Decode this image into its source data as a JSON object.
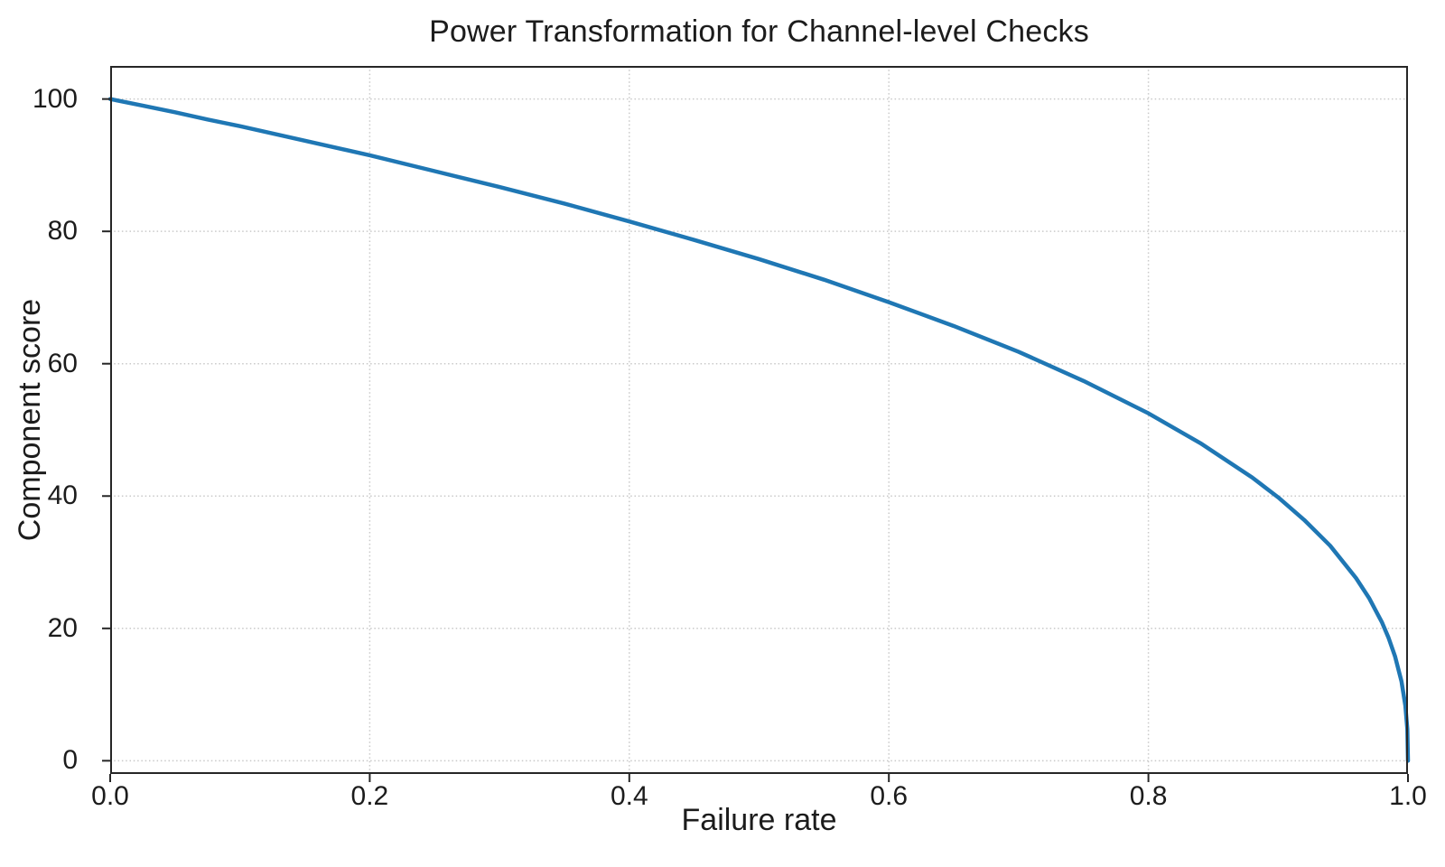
{
  "figure": {
    "background": "#ffffff",
    "text_color": "#1c1c1c"
  },
  "chart_data": {
    "type": "line",
    "title": "Power Transformation for Channel-level Checks",
    "xlabel": "Failure rate",
    "ylabel": "Component score",
    "xlim": [
      0,
      1
    ],
    "ylim": [
      -2,
      105
    ],
    "grid": {
      "style": "dotted",
      "color": "#c9c9c9"
    },
    "spine_color": "#262626",
    "legend": "none",
    "x_ticks": {
      "values": [
        0.0,
        0.2,
        0.4,
        0.6,
        0.8,
        1.0
      ],
      "labels": [
        "0.0",
        "0.2",
        "0.4",
        "0.6",
        "0.8",
        "1.0"
      ]
    },
    "y_ticks": {
      "values": [
        0,
        20,
        40,
        60,
        80,
        100
      ],
      "labels": [
        "0",
        "20",
        "40",
        "60",
        "80",
        "100"
      ]
    },
    "series": [
      {
        "name": "Component score",
        "formula": "y = 100 * (1 - x)^0.4",
        "color": "#1f77b4",
        "line_width": 4.5,
        "x": [
          0,
          0.025,
          0.05,
          0.075,
          0.1,
          0.15,
          0.2,
          0.25,
          0.3,
          0.35,
          0.4,
          0.45,
          0.5,
          0.55,
          0.6,
          0.65,
          0.7,
          0.75,
          0.8,
          0.84,
          0.88,
          0.9,
          0.92,
          0.94,
          0.96,
          0.97,
          0.98,
          0.985,
          0.99,
          0.995,
          0.998,
          0.9995,
          1.0
        ],
        "y": [
          100,
          99.0,
          98.0,
          96.9,
          95.9,
          93.7,
          91.5,
          89.1,
          86.7,
          84.2,
          81.5,
          78.7,
          75.8,
          72.7,
          69.3,
          65.7,
          61.8,
          57.4,
          52.5,
          48.0,
          42.8,
          39.8,
          36.4,
          32.5,
          27.6,
          24.6,
          20.9,
          18.6,
          15.8,
          12.0,
          8.3,
          4.8,
          0
        ]
      }
    ]
  }
}
